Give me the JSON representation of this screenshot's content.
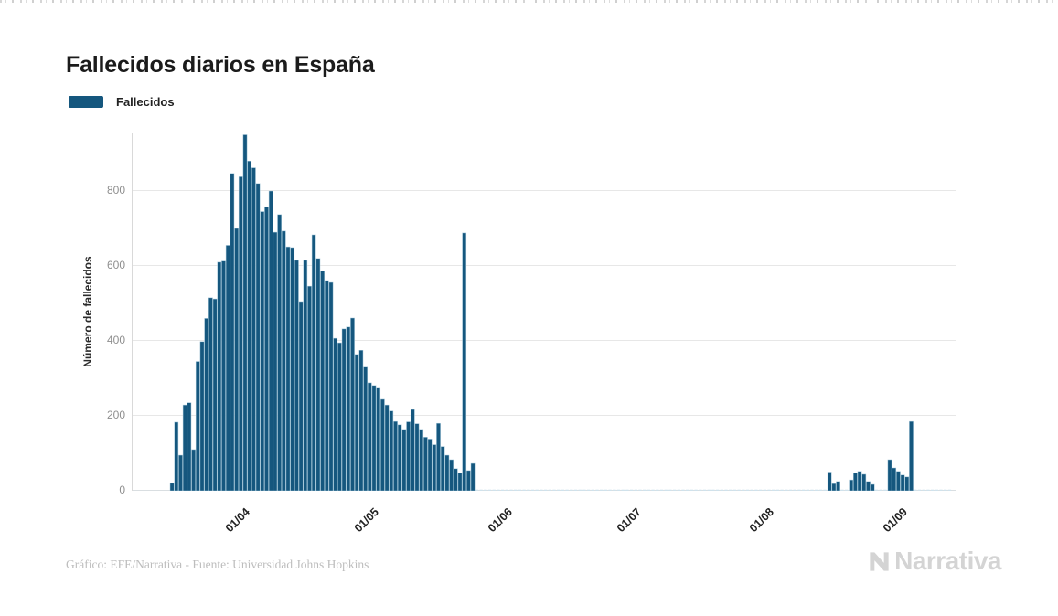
{
  "header": {
    "title": "Fallecidos diarios en España"
  },
  "legend": {
    "label": "Fallecidos"
  },
  "footer": {
    "credit": "Gráfico: EFE/Narrativa - Fuente: Universidad Johns Hopkins",
    "brand": "Narrativa"
  },
  "chart_data": {
    "type": "bar",
    "title": "Fallecidos diarios en España",
    "series_name": "Fallecidos",
    "xlabel": "",
    "ylabel": "Número de fallecidos",
    "y_ticks": [
      0,
      200,
      400,
      600,
      800
    ],
    "ylim": [
      0,
      956
    ],
    "grid": true,
    "legend_position": "top-left",
    "bar_color": "#15577E",
    "bar_edge_color": "#A9CADC",
    "zero_marker_color": "#CFE2EC",
    "start_date": "2020-03-15",
    "frequency": "daily",
    "x_ticks": [
      {
        "label": "01/04",
        "day_index": 17
      },
      {
        "label": "01/05",
        "day_index": 47
      },
      {
        "label": "01/06",
        "day_index": 78
      },
      {
        "label": "01/07",
        "day_index": 108
      },
      {
        "label": "01/08",
        "day_index": 139
      },
      {
        "label": "01/09",
        "day_index": 170
      }
    ],
    "values": [
      20,
      183,
      95,
      229,
      235,
      110,
      345,
      398,
      460,
      515,
      512,
      610,
      613,
      655,
      847,
      700,
      838,
      950,
      880,
      862,
      820,
      745,
      758,
      800,
      690,
      737,
      693,
      651,
      649,
      615,
      505,
      615,
      546,
      683,
      620,
      586,
      561,
      556,
      407,
      395,
      432,
      437,
      461,
      364,
      375,
      330,
      288,
      281,
      276,
      244,
      229,
      213,
      185,
      176,
      164,
      184,
      217,
      179,
      164,
      143,
      138,
      123,
      180,
      118,
      95,
      83,
      59,
      48,
      688,
      54,
      73,
      0,
      0,
      0,
      0,
      0,
      0,
      0,
      0,
      0,
      0,
      0,
      0,
      0,
      0,
      0,
      0,
      0,
      0,
      0,
      0,
      0,
      0,
      0,
      0,
      0,
      0,
      0,
      0,
      0,
      0,
      0,
      0,
      0,
      0,
      0,
      0,
      0,
      0,
      0,
      0,
      0,
      0,
      0,
      0,
      0,
      0,
      0,
      0,
      0,
      0,
      0,
      0,
      0,
      0,
      0,
      0,
      0,
      0,
      0,
      0,
      0,
      0,
      0,
      0,
      0,
      0,
      0,
      0,
      0,
      0,
      0,
      0,
      0,
      0,
      0,
      0,
      0,
      0,
      0,
      0,
      0,
      0,
      50,
      19,
      25,
      0,
      0,
      29,
      48,
      52,
      44,
      25,
      17,
      0,
      0,
      0,
      83,
      61,
      52,
      42,
      37,
      185,
      0,
      0,
      0,
      0,
      0,
      0,
      0,
      0,
      0
    ]
  }
}
